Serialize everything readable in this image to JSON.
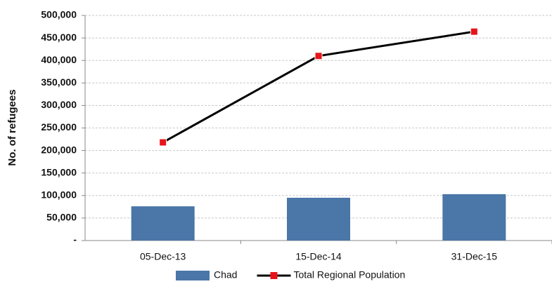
{
  "chart_data": {
    "type": "bar",
    "y_label": "No. of refugees",
    "categories": [
      "05-Dec-13",
      "15-Dec-14",
      "31-Dec-15"
    ],
    "series": [
      {
        "name": "Chad",
        "type": "bar",
        "color": "#4a76a8",
        "values": [
          76000,
          95000,
          103000
        ]
      },
      {
        "name": "Total Regional Population",
        "type": "line",
        "color": "#000000",
        "marker_color": "#e8141b",
        "values": [
          218000,
          410000,
          464000
        ]
      }
    ],
    "ylim": [
      0,
      500000
    ],
    "yticks": [
      {
        "value": 0,
        "label": "-"
      },
      {
        "value": 50000,
        "label": "50,000"
      },
      {
        "value": 100000,
        "label": "100,000"
      },
      {
        "value": 150000,
        "label": "150,000"
      },
      {
        "value": 200000,
        "label": "200,000"
      },
      {
        "value": 250000,
        "label": "250,000"
      },
      {
        "value": 300000,
        "label": "300,000"
      },
      {
        "value": 350000,
        "label": "350,000"
      },
      {
        "value": 400000,
        "label": "400,000"
      },
      {
        "value": 450000,
        "label": "450,000"
      },
      {
        "value": 500000,
        "label": "500,000"
      }
    ],
    "grid": true,
    "legend": "bottom"
  }
}
